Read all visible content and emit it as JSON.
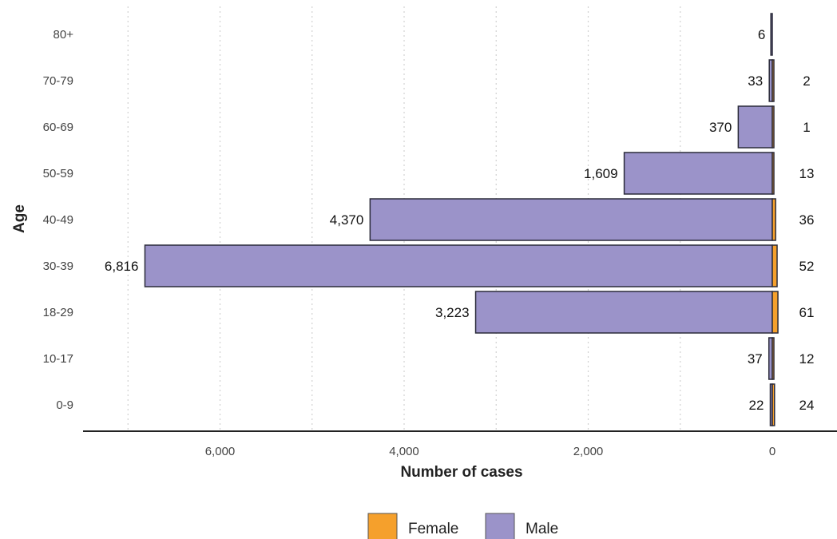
{
  "chart_data": {
    "type": "bar",
    "orientation": "horizontal",
    "title": "",
    "xlabel": "Number of cases",
    "ylabel": "Age",
    "categories": [
      "80+",
      "70-79",
      "60-69",
      "50-59",
      "40-49",
      "30-39",
      "18-29",
      "10-17",
      "0-9"
    ],
    "series": [
      {
        "name": "Male",
        "color": "#9b93c9",
        "values": [
          6,
          33,
          370,
          1609,
          4370,
          6816,
          3223,
          37,
          22
        ],
        "labels": [
          "6",
          "33",
          "370",
          "1,609",
          "4,370",
          "6,816",
          "3,223",
          "37",
          "22"
        ]
      },
      {
        "name": "Female",
        "color": "#f5a02c",
        "values": [
          null,
          2,
          1,
          13,
          36,
          52,
          61,
          12,
          24
        ],
        "labels": [
          "",
          "2",
          "1",
          "13",
          "36",
          "52",
          "61",
          "12",
          "24"
        ]
      }
    ],
    "xticks": [
      6000,
      4000,
      2000,
      0
    ],
    "xtick_labels": [
      "6,000",
      "4,000",
      "2,000",
      "0"
    ],
    "xlim": [
      7400,
      -600
    ],
    "x_reversed": true,
    "grid": "vertical-dotted",
    "legend_position": "bottom"
  }
}
